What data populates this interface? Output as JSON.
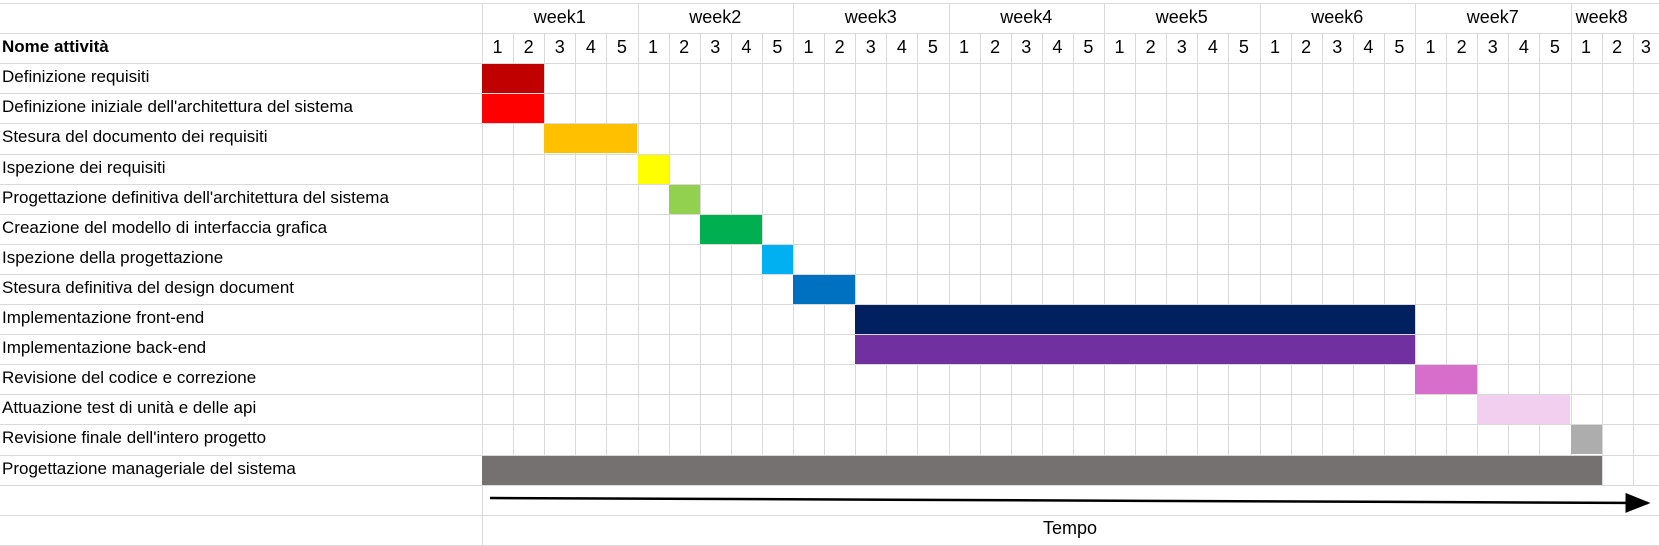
{
  "header": {
    "task_column_title": "Nome attività",
    "weeks": [
      {
        "label": "week1",
        "days": [
          "1",
          "2",
          "3",
          "4",
          "5"
        ]
      },
      {
        "label": "week2",
        "days": [
          "1",
          "2",
          "3",
          "4",
          "5"
        ]
      },
      {
        "label": "week3",
        "days": [
          "1",
          "2",
          "3",
          "4",
          "5"
        ]
      },
      {
        "label": "week4",
        "days": [
          "1",
          "2",
          "3",
          "4",
          "5"
        ]
      },
      {
        "label": "week5",
        "days": [
          "1",
          "2",
          "3",
          "4",
          "5"
        ]
      },
      {
        "label": "week6",
        "days": [
          "1",
          "2",
          "3",
          "4",
          "5"
        ]
      },
      {
        "label": "week7",
        "days": [
          "1",
          "2",
          "3",
          "4",
          "5"
        ]
      },
      {
        "label": "week8",
        "days": [
          "1",
          "2",
          "3"
        ]
      }
    ]
  },
  "tasks": [
    {
      "name": "Definizione requisiti",
      "start_day": 1,
      "end_day": 2,
      "color": "#C00000"
    },
    {
      "name": "Definizione iniziale dell'architettura del sistema",
      "start_day": 1,
      "end_day": 2,
      "color": "#FF0000"
    },
    {
      "name": "Stesura del documento dei requisiti",
      "start_day": 3,
      "end_day": 5,
      "color": "#FFC000"
    },
    {
      "name": "Ispezione dei requisiti",
      "start_day": 6,
      "end_day": 6,
      "color": "#FFFF00"
    },
    {
      "name": "Progettazione definitiva dell'architettura del sistema",
      "start_day": 7,
      "end_day": 7,
      "color": "#92D050"
    },
    {
      "name": "Creazione del modello di interfaccia grafica",
      "start_day": 8,
      "end_day": 9,
      "color": "#00B050"
    },
    {
      "name": "Ispezione della progettazione",
      "start_day": 10,
      "end_day": 10,
      "color": "#00B0F0"
    },
    {
      "name": "Stesura definitiva del design document",
      "start_day": 11,
      "end_day": 12,
      "color": "#0070C0"
    },
    {
      "name": "Implementazione front-end",
      "start_day": 13,
      "end_day": 30,
      "color": "#002060"
    },
    {
      "name": "Implementazione back-end",
      "start_day": 13,
      "end_day": 30,
      "color": "#7030A0"
    },
    {
      "name": "Revisione del codice e correzione",
      "start_day": 31,
      "end_day": 32,
      "color": "#D86ECC"
    },
    {
      "name": "Attuazione test di unità e delle api",
      "start_day": 33,
      "end_day": 35,
      "color": "#F2CEEF"
    },
    {
      "name": "Revisione finale dell'intero progetto",
      "start_day": 36,
      "end_day": 36,
      "color": "#ADADAD"
    },
    {
      "name": "Progettazione manageriale del sistema",
      "start_day": 1,
      "end_day": 36,
      "color": "#767171"
    }
  ],
  "time_axis": {
    "label": "Tempo",
    "color": "#000000"
  },
  "colors": {
    "gridline": "#D9D9D9",
    "background": "#FFFFFF"
  }
}
